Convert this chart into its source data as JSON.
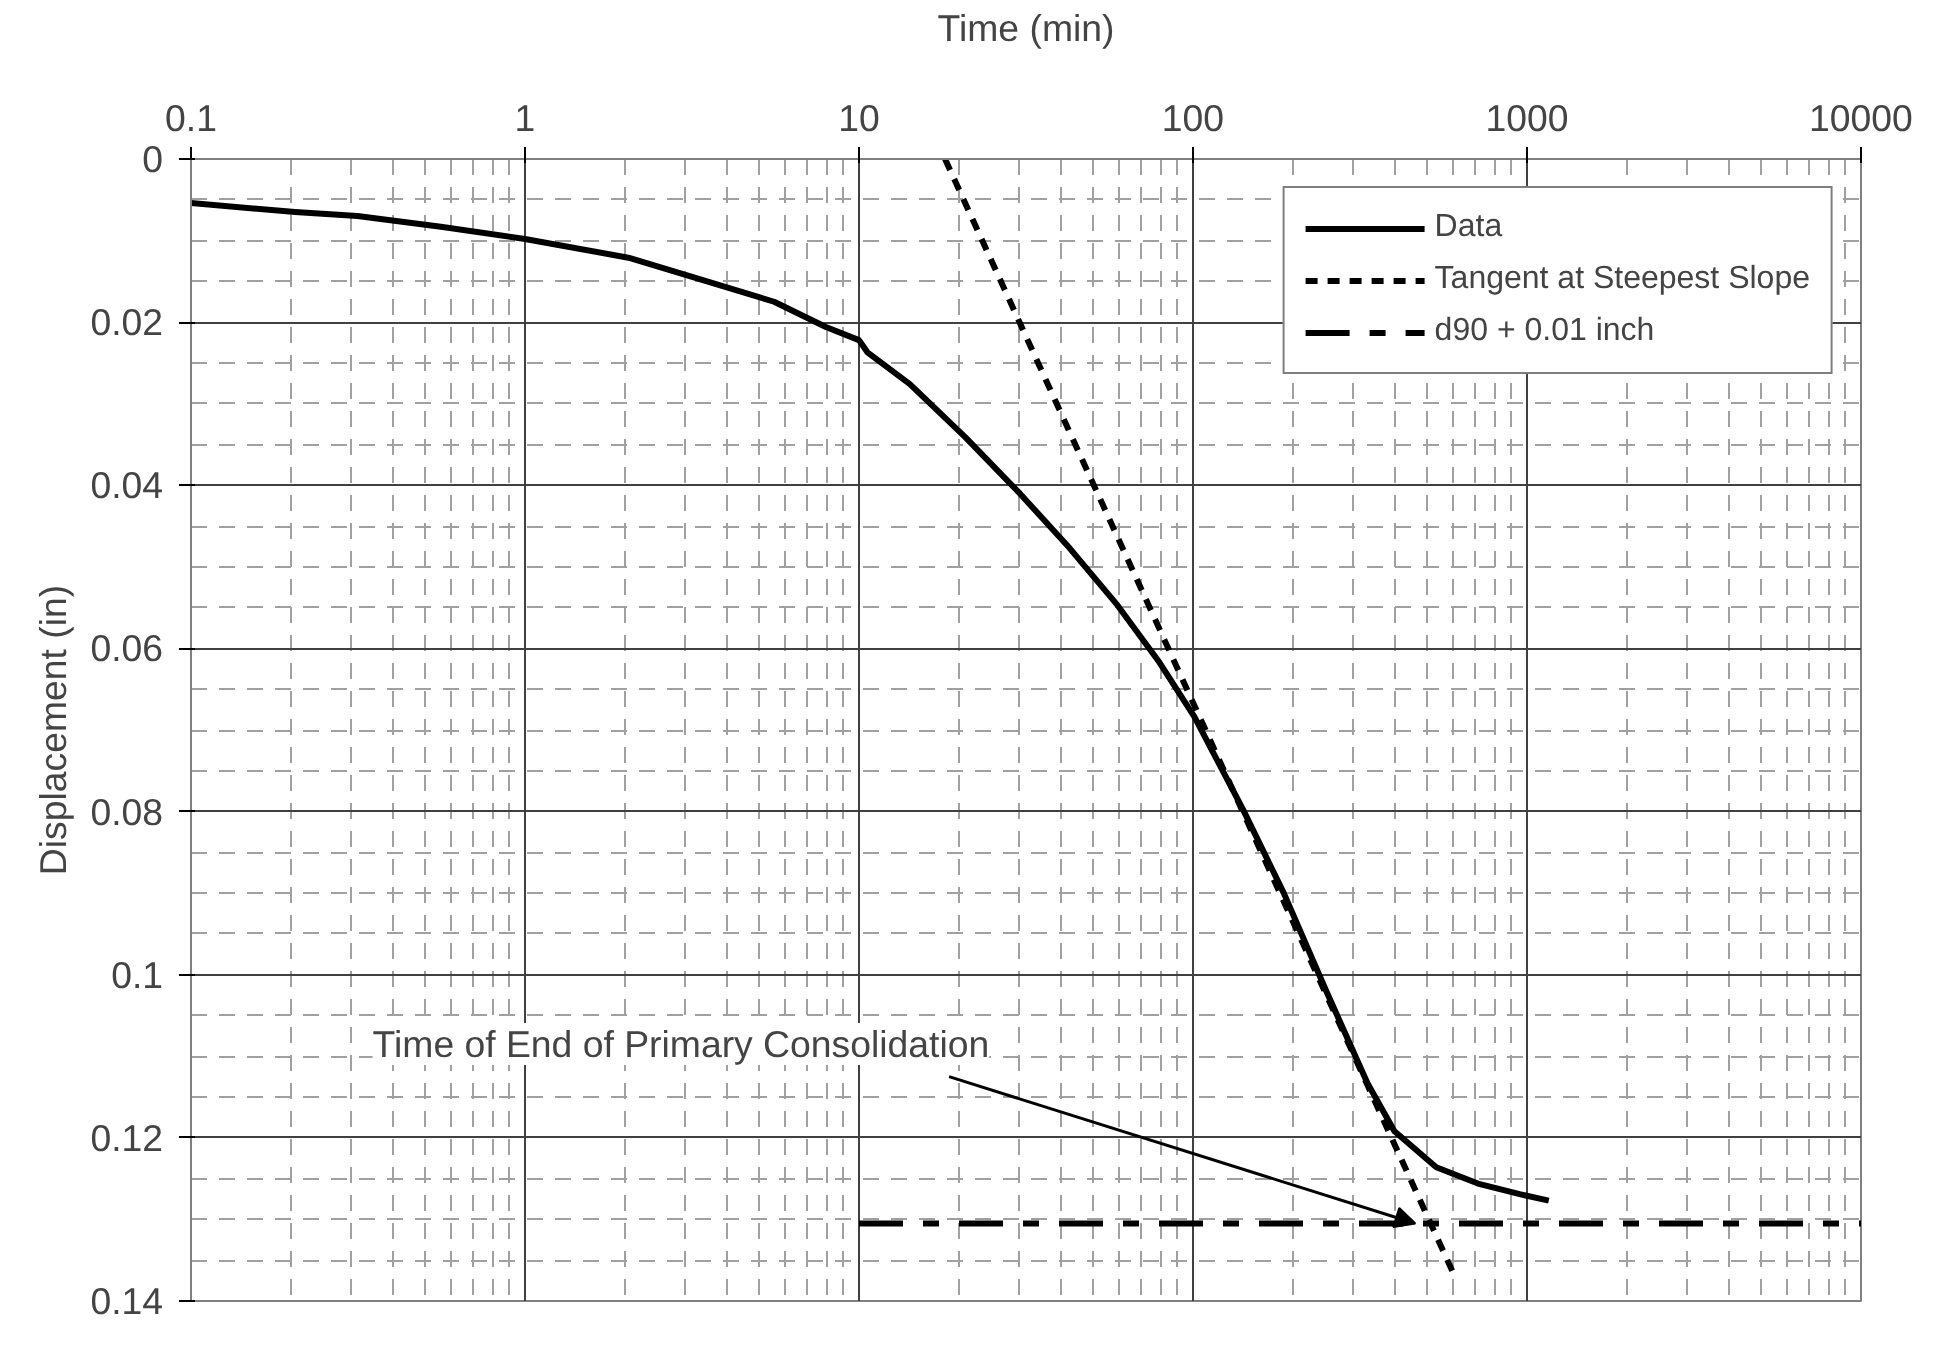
{
  "chart_data": {
    "type": "line",
    "xlabel": "Time (min)",
    "ylabel": "Displacement (in)",
    "log": "x",
    "xlim": [
      0.1,
      10000
    ],
    "xticks": [
      0.1,
      1,
      10,
      100,
      1000,
      10000
    ],
    "ylim": [
      0.14,
      0
    ],
    "yticks": [
      0,
      0.02,
      0.04,
      0.06,
      0.08,
      0.1,
      0.12,
      0.14
    ],
    "grid": true,
    "legend": "top right",
    "marker": "none",
    "series": [
      {
        "name": "Data",
        "color": "#000000",
        "line_style": "solid",
        "x": [
          0.1,
          0.205,
          0.315,
          0.56,
          1,
          2.04,
          3.13,
          5.57,
          7.96,
          10,
          10.6,
          14.2,
          20.8,
          30.3,
          42.7,
          59.4,
          79.3,
          101,
          141,
          187,
          250,
          333,
          401,
          535,
          713,
          951,
          1162
        ],
        "values": [
          0.0054,
          0.0065,
          0.007,
          0.0083,
          0.0098,
          0.0121,
          0.0144,
          0.0175,
          0.0206,
          0.0222,
          0.0237,
          0.0276,
          0.0341,
          0.041,
          0.0477,
          0.0547,
          0.0617,
          0.0684,
          0.0797,
          0.09,
          0.1019,
          0.1133,
          0.1192,
          0.1236,
          0.1256,
          0.1269,
          0.1277
        ]
      },
      {
        "name": "Tangent at Steepest Slope",
        "color": "#000000",
        "line_style": "dotted",
        "x": [
          18.1,
          608
        ],
        "values": [
          0,
          0.137
        ]
      },
      {
        "name": "d90 + 0.01 inch",
        "color": "#000000",
        "line_style": "dashdot",
        "x": [
          10,
          10000
        ],
        "values": [
          0.1305,
          0.1305
        ]
      }
    ],
    "annotations": [
      {
        "text": "Time of End of Primary Consolidation",
        "x": 463,
        "y": 0.1305
      }
    ]
  }
}
